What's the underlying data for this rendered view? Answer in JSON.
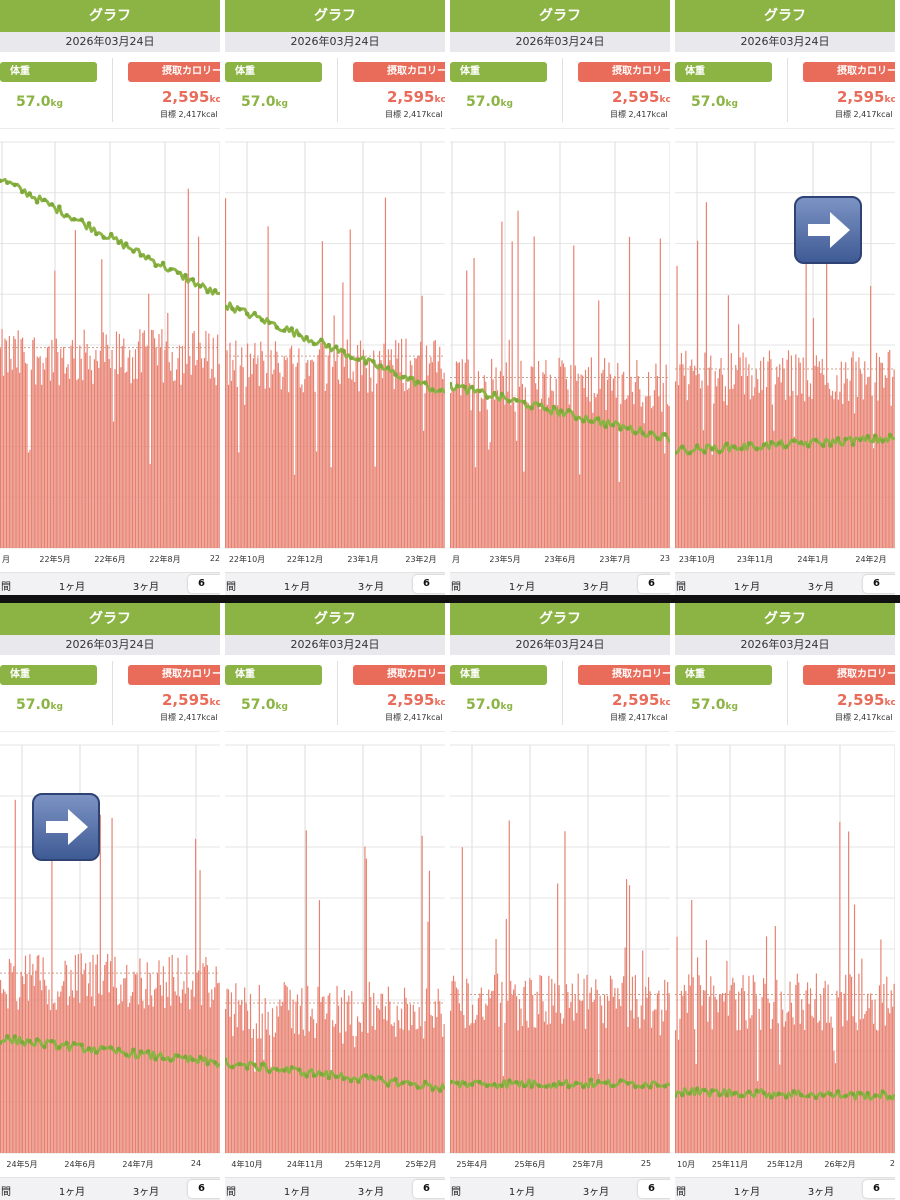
{
  "app": {
    "title": "グラフ",
    "date": "2026年03月24日",
    "weight_label": "体重",
    "weight_value": "57.0",
    "weight_unit": "kg",
    "calorie_label": "摂取カロリー",
    "calorie_value": "2,595",
    "calorie_unit": "kcal",
    "calorie_target": "目標 2,417kcal"
  },
  "segments": [
    "間",
    "1ヶ月",
    "3ヶ月",
    "6"
  ],
  "colors": {
    "header": "#8cb445",
    "calorie": "#e96b5a",
    "weight_line": "#8cb445",
    "arrow": "#4a66a0"
  },
  "icons": {
    "next": "right-arrow-icon"
  },
  "chart_data": [
    {
      "type": "bar",
      "x_labels": [
        "月",
        "22年5月",
        "22年6月",
        "22年8月",
        "22"
      ],
      "series": [
        {
          "name": "摂取カロリー",
          "level": 0.47
        },
        {
          "name": "体重",
          "start": 0.91,
          "end": 0.62
        }
      ],
      "arrow": false
    },
    {
      "type": "bar",
      "x_labels": [
        "22年10月",
        "22年12月",
        "23年1月",
        "23年2月"
      ],
      "series": [
        {
          "name": "摂取カロリー",
          "level": 0.45
        },
        {
          "name": "体重",
          "start": 0.6,
          "end": 0.38
        }
      ],
      "arrow": false
    },
    {
      "type": "bar",
      "x_labels": [
        "月",
        "23年5月",
        "23年6月",
        "23年7月",
        "23"
      ],
      "series": [
        {
          "name": "摂取カロリー",
          "level": 0.4
        },
        {
          "name": "体重",
          "start": 0.4,
          "end": 0.27
        }
      ],
      "arrow": false
    },
    {
      "type": "bar",
      "x_labels": [
        "23年10月",
        "23年11月",
        "24年1月",
        "24年2月"
      ],
      "series": [
        {
          "name": "摂取カロリー",
          "level": 0.42
        },
        {
          "name": "体重",
          "start": 0.24,
          "end": 0.27
        }
      ],
      "arrow": true
    },
    {
      "type": "bar",
      "x_labels": [
        "24年5月",
        "24年6月",
        "24年7月",
        "24"
      ],
      "series": [
        {
          "name": "摂取カロリー",
          "level": 0.42
        },
        {
          "name": "体重",
          "start": 0.28,
          "end": 0.22
        }
      ],
      "arrow": true
    },
    {
      "type": "bar",
      "x_labels": [
        "4年10月",
        "24年11月",
        "25年12月",
        "25年2月"
      ],
      "series": [
        {
          "name": "摂取カロリー",
          "level": 0.35
        },
        {
          "name": "体重",
          "start": 0.22,
          "end": 0.16
        }
      ],
      "arrow": false
    },
    {
      "type": "bar",
      "x_labels": [
        "25年4月",
        "25年6月",
        "25年7月",
        "25"
      ],
      "series": [
        {
          "name": "摂取カロリー",
          "level": 0.37
        },
        {
          "name": "体重",
          "start": 0.17,
          "end": 0.17
        }
      ],
      "arrow": false
    },
    {
      "type": "bar",
      "x_labels": [
        "10月",
        "25年11月",
        "25年12月",
        "26年2月",
        "2"
      ],
      "series": [
        {
          "name": "摂取カロリー",
          "level": 0.37
        },
        {
          "name": "体重",
          "start": 0.15,
          "end": 0.14
        }
      ],
      "arrow": false
    }
  ]
}
